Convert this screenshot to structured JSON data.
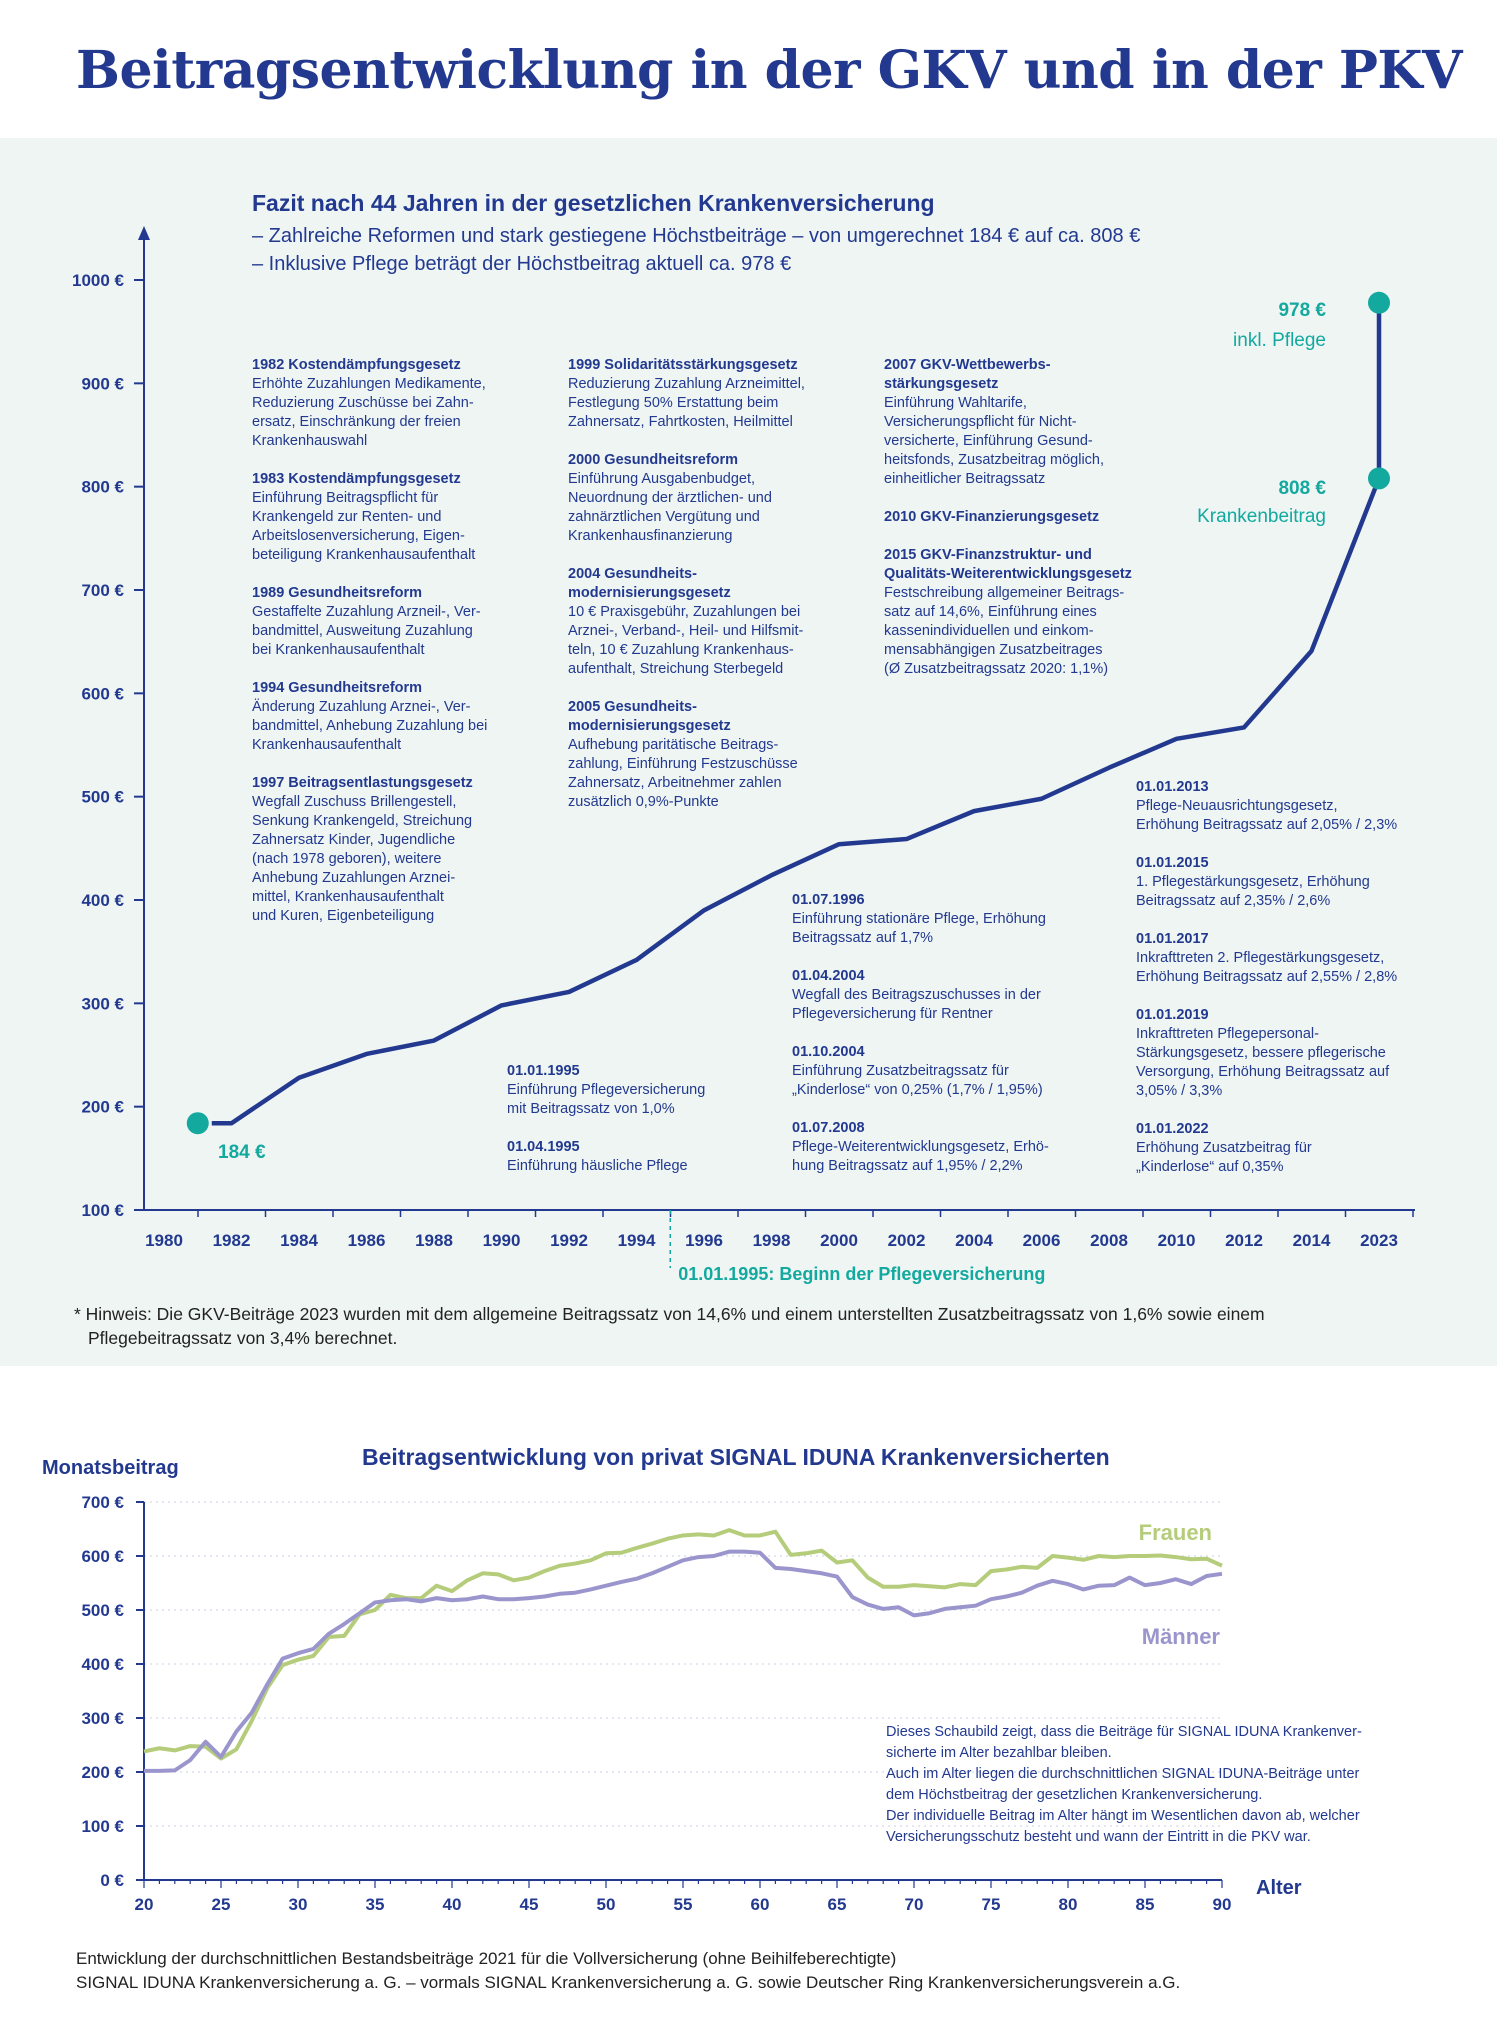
{
  "page": {
    "title": "Beitragsentwicklung in der GKV und in der PKV"
  },
  "gkv": {
    "subtitle": "Fazit nach 44 Jahren in der gesetzlichen Krankenversicherung",
    "bullets": [
      "–  Zahlreiche Reformen und stark gestiegene Höchstbeiträge – von umgerechnet 184 € auf ca. 808 €",
      "–  Inklusive Pflege beträgt der Höchstbeitrag aktuell ca. 978 €"
    ],
    "markers": {
      "start_value": "184 €",
      "kranken_value": "808 €",
      "kranken_label": "Krankenbeitrag",
      "pflege_value": "978 €",
      "pflege_label": "inkl. Pflege"
    },
    "pflege_start_label": "01.01.1995: Beginn der Pflegeversicherung",
    "events_col1": [
      {
        "title": "1982 Kostendämpfungsgesetz",
        "text": "Erhöhte Zuzahlungen Medikamente,\nReduzierung Zuschüsse bei Zahn-\nersatz, Einschränkung der freien\nKrankenhauswahl"
      },
      {
        "title": "1983 Kostendämpfungsgesetz",
        "text": "Einführung Beitragspflicht für\nKrankengeld zur Renten- und\nArbeitslosenversicherung, Eigen-\nbeteiligung Krankenhausaufenthalt"
      },
      {
        "title": "1989 Gesundheitsreform",
        "text": "Gestaffelte Zuzahlung Arzneil-, Ver-\nbandmittel, Ausweitung Zuzahlung\nbei Krankenhausaufenthalt"
      },
      {
        "title": "1994 Gesundheitsreform",
        "text": "Änderung Zuzahlung Arznei-, Ver-\nbandmittel, Anhebung Zuzahlung bei\nKrankenhausaufenthalt"
      },
      {
        "title": "1997 Beitragsentlastungsgesetz",
        "text": "Wegfall Zuschuss Brillengestell,\nSenkung Krankengeld, Streichung\nZahnersatz Kinder, Jugendliche\n(nach 1978 geboren), weitere\nAnhebung Zuzahlungen Arznei-\nmittel, Krankenhausaufenthalt\nund Kuren, Eigenbeteiligung"
      }
    ],
    "events_col2": [
      {
        "title": "1999 Solidaritätsstärkungsgesetz",
        "text": "Reduzierung Zuzahlung Arzneimittel,\nFestlegung 50% Erstattung beim\nZahnersatz, Fahrtkosten, Heilmittel"
      },
      {
        "title": "2000 Gesundheitsreform",
        "text": "Einführung Ausgabenbudget,\nNeuordnung der ärztlichen- und\nzahnärztlichen Vergütung und\nKrankenhausfinanzierung"
      },
      {
        "title": "2004 Gesundheits-\nmodernisierungsgesetz",
        "text": "10 € Praxisgebühr, Zuzahlungen bei\nArznei-, Verband-, Heil- und Hilfsmit-\nteln, 10 € Zuzahlung Krankenhaus-\naufenthalt, Streichung Sterbegeld"
      },
      {
        "title": "2005 Gesundheits-\nmodernisierungsgesetz",
        "text": "Aufhebung paritätische Beitrags-\nzahlung, Einführung Festzuschüsse\nZahnersatz, Arbeitnehmer zahlen\nzusätzlich 0,9%-Punkte"
      }
    ],
    "events_col3": [
      {
        "title": "2007 GKV-Wettbewerbs-\nstärkungsgesetz",
        "text": "Einführung Wahltarife,\nVersicherungspflicht für Nicht-\nversicherte, Einführung Gesund-\nheitsfonds, Zusatzbeitrag möglich,\neinheitlicher Beitragssatz"
      },
      {
        "title": "2010 GKV-Finanzierungsgesetz",
        "text": ""
      },
      {
        "title": "2015 GKV-Finanzstruktur- und\nQualitäts-Weiterentwicklungsgesetz",
        "text": "Festschreibung allgemeiner Beitrags-\nsatz auf 14,6%, Einführung eines\nkassenindividuellen und einkom-\nmensabhängigen Zusatzbeitrages\n(Ø Zusatzbeitragssatz 2020: 1,1%)"
      }
    ],
    "pflege_events_a": [
      {
        "title": "01.01.1995",
        "text": "Einführung Pflegeversicherung\nmit Beitragssatz von 1,0%"
      },
      {
        "title": "01.04.1995",
        "text": "Einführung häusliche Pflege"
      }
    ],
    "pflege_events_b": [
      {
        "title": "01.07.1996",
        "text": "Einführung stationäre Pflege, Erhöhung\nBeitragssatz auf 1,7%"
      },
      {
        "title": "01.04.2004",
        "text": "Wegfall des Beitragszuschusses in der\nPflegeversicherung für Rentner"
      },
      {
        "title": "01.10.2004",
        "text": "Einführung Zusatzbeitragssatz für\n„Kinderlose“ von 0,25% (1,7% / 1,95%)"
      },
      {
        "title": "01.07.2008",
        "text": "Pflege-Weiterentwicklungsgesetz, Erhö-\nhung Beitragssatz auf 1,95% / 2,2%"
      }
    ],
    "pflege_events_c": [
      {
        "title": "01.01.2013",
        "text": "Pflege-Neuausrichtungsgesetz,\nErhöhung Beitragssatz auf 2,05% / 2,3%"
      },
      {
        "title": "01.01.2015",
        "text": "1. Pflegestärkungsgesetz, Erhöhung\nBeitragssatz auf 2,35% / 2,6%"
      },
      {
        "title": "01.01.2017",
        "text": "Inkrafttreten 2. Pflegestärkungsgesetz,\nErhöhung Beitragssatz auf 2,55% / 2,8%"
      },
      {
        "title": "01.01.2019",
        "text": "Inkrafttreten Pflegepersonal-\nStärkungsgesetz, bessere pflegerische\nVersorgung, Erhöhung Beitragssatz auf\n3,05% / 3,3%"
      },
      {
        "title": "01.01.2022",
        "text": "Erhöhung Zusatzbeitrag für\n„Kinderlose“ auf 0,35%"
      }
    ],
    "footnote": [
      "* Hinweis: Die GKV-Beiträge 2023 wurden mit dem allgemeine Beitragssatz von 14,6% und einem unterstellten Zusatzbeitragssatz von 1,6% sowie einem",
      "Pflegebeitragssatz von 3,4% berechnet."
    ]
  },
  "pkv": {
    "title": "Beitragsentwicklung von privat SIGNAL IDUNA Krankenversicherten",
    "ylabel": "Monatsbeitrag",
    "xlabel": "Alter",
    "note": [
      "Dieses Schaubild zeigt, dass die Beiträge für SIGNAL IDUNA Krankenver-",
      "sicherte im Alter bezahlbar bleiben.",
      "Auch im Alter liegen die durchschnittlichen SIGNAL IDUNA-Beiträge unter",
      "dem Höchstbeitrag der gesetzlichen Krankenversicherung.",
      "Der individuelle Beitrag im Alter hängt im Wesentlichen davon ab, welcher",
      "Versicherungsschutz besteht und wann der Eintritt in die PKV war."
    ],
    "source": [
      "Entwicklung der durchschnittlichen Bestandsbeiträge 2021 für die Vollversicherung (ohne Beihilfeberechtigte)",
      "SIGNAL IDUNA Krankenversicherung a. G. – vormals SIGNAL Krankenversicherung a. G. sowie Deutscher Ring Krankenversicherungsverein a.G."
    ]
  },
  "colors": {
    "navy": "#22398f",
    "teal": "#13a99f",
    "green": "#b5cc7b",
    "purple": "#9a95cc",
    "panel": "#eef5f3"
  },
  "chart_data": [
    {
      "type": "line",
      "x_tick_labels": [
        "1980",
        "1982",
        "1984",
        "1986",
        "1988",
        "1990",
        "1992",
        "1994",
        "1996",
        "1998",
        "2000",
        "2002",
        "2004",
        "2006",
        "2008",
        "2010",
        "2012",
        "2014",
        "2023"
      ],
      "y_tick_labels": [
        "100 €",
        "200 €",
        "300 €",
        "400 €",
        "500 €",
        "600 €",
        "700 €",
        "800 €",
        "900 €",
        "1000 €"
      ],
      "ylim": [
        100,
        1000
      ],
      "series": [
        {
          "x": [
            "1981",
            "1982",
            "1984",
            "1986",
            "1988",
            "1990",
            "1992",
            "1994",
            "1996",
            "1998",
            "2000",
            "2002",
            "2004",
            "2006",
            "2008",
            "2010",
            "2012",
            "2014",
            "2023"
          ],
          "values": [
            184,
            184,
            228,
            251,
            264,
            298,
            311,
            342,
            390,
            424,
            454,
            459,
            486,
            498,
            528,
            556,
            567,
            641,
            808
          ]
        }
      ],
      "markers": [
        {
          "x": "1981",
          "value": 184
        },
        {
          "x": "2023",
          "value": 808
        },
        {
          "x": "2023",
          "value": 978
        }
      ]
    },
    {
      "type": "line",
      "x": [
        20,
        21,
        22,
        23,
        24,
        25,
        26,
        27,
        28,
        29,
        30,
        31,
        32,
        33,
        34,
        35,
        36,
        37,
        38,
        39,
        40,
        41,
        42,
        43,
        44,
        45,
        46,
        47,
        48,
        49,
        50,
        51,
        52,
        53,
        54,
        55,
        56,
        57,
        58,
        59,
        60,
        61,
        62,
        63,
        64,
        65,
        66,
        67,
        68,
        69,
        70,
        71,
        72,
        73,
        74,
        75,
        76,
        77,
        78,
        79,
        80,
        81,
        82,
        83,
        84,
        85,
        86,
        87,
        88,
        89,
        90
      ],
      "x_tick_labels": [
        "20",
        "25",
        "30",
        "35",
        "40",
        "45",
        "50",
        "55",
        "60",
        "65",
        "70",
        "75",
        "80",
        "85",
        "90"
      ],
      "y_tick_labels": [
        "0 €",
        "100 €",
        "200 €",
        "300 €",
        "400 €",
        "500 €",
        "600 €",
        "700 €"
      ],
      "ylim": [
        0,
        700
      ],
      "xlim": [
        20,
        90
      ],
      "series": [
        {
          "name": "Frauen",
          "values": [
            238,
            244,
            240,
            248,
            247,
            225,
            242,
            295,
            355,
            398,
            408,
            415,
            450,
            452,
            492,
            500,
            528,
            522,
            522,
            545,
            535,
            555,
            568,
            566,
            555,
            560,
            572,
            582,
            586,
            592,
            605,
            606,
            615,
            623,
            632,
            638,
            640,
            638,
            648,
            638,
            638,
            645,
            602,
            605,
            610,
            588,
            592,
            560,
            543,
            543,
            546,
            544,
            542,
            548,
            546,
            572,
            575,
            580,
            578,
            600,
            597,
            593,
            600,
            598,
            600,
            600,
            601,
            598,
            594,
            595,
            582
          ],
          "color": "#b5cc7b"
        },
        {
          "name": "Männer",
          "values": [
            202,
            202,
            203,
            222,
            256,
            228,
            275,
            310,
            362,
            410,
            420,
            428,
            456,
            474,
            494,
            514,
            518,
            520,
            516,
            522,
            518,
            520,
            525,
            520,
            520,
            522,
            525,
            530,
            532,
            538,
            545,
            552,
            558,
            568,
            580,
            592,
            598,
            600,
            608,
            608,
            606,
            578,
            576,
            572,
            568,
            562,
            524,
            510,
            502,
            505,
            490,
            494,
            502,
            505,
            508,
            520,
            525,
            532,
            545,
            554,
            548,
            538,
            545,
            546,
            560,
            546,
            550,
            557,
            548,
            563,
            567
          ],
          "color": "#9a95cc"
        }
      ]
    }
  ]
}
